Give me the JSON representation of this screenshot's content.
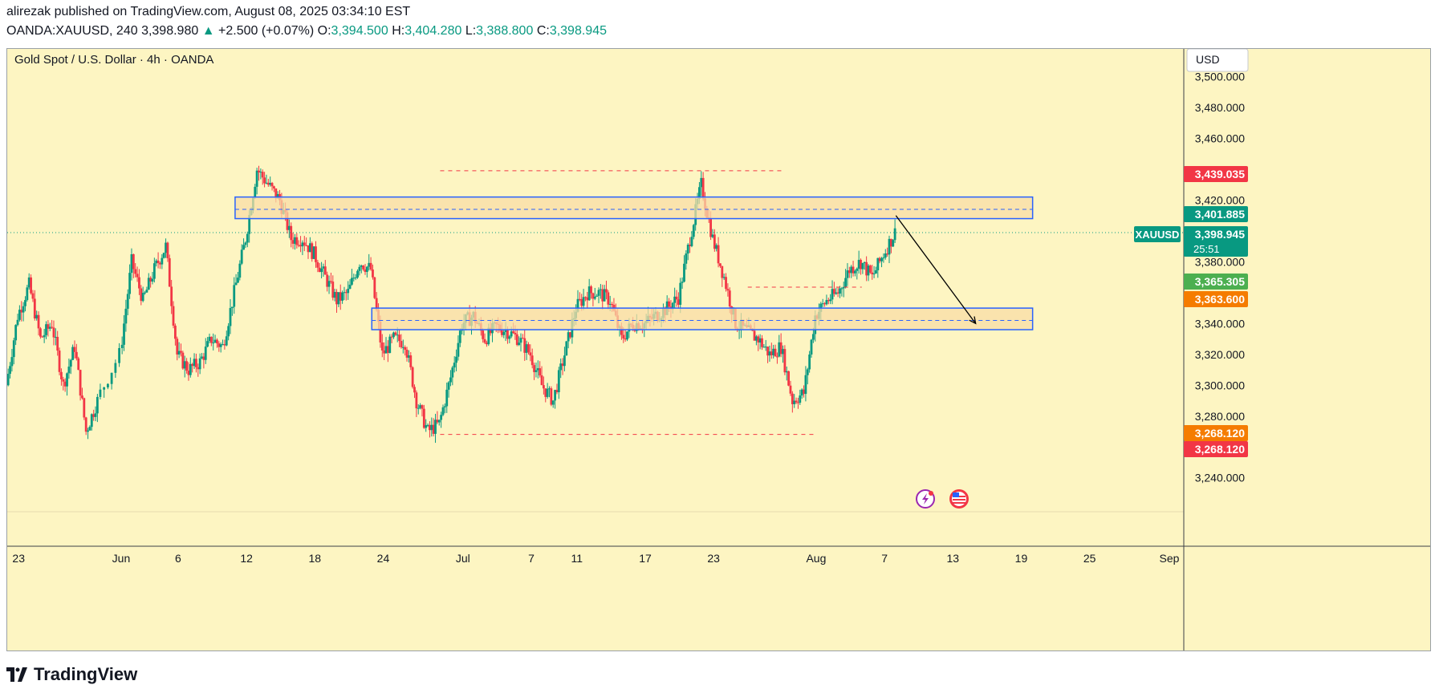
{
  "header": {
    "published": "alirezak published on TradingView.com, August 08, 2025 03:34:10 EST",
    "symbol": "OANDA:XAUUSD, 240",
    "price": "3,398.980",
    "change": "+2.500 (+0.07%)",
    "open_label": "O:",
    "open": "3,394.500",
    "high_label": "H:",
    "high": "3,404.280",
    "low_label": "L:",
    "low": "3,388.800",
    "close_label": "C:",
    "close": "3,398.945"
  },
  "chart_title": "Gold Spot / U.S. Dollar · 4h · OANDA",
  "currency_label": "USD",
  "colors": {
    "up": "#089981",
    "down": "#f23645",
    "background": "#fdf5c2",
    "zone_fill": "#f8dca6",
    "zone_border": "#2962ff",
    "level_line": "#f23645",
    "arrow": "#000000",
    "current_line": "#089981"
  },
  "icons": [
    "trading-view-logo-icon",
    "dividend-flash-icon",
    "us-flag-icon",
    "up-triangle-icon"
  ],
  "chart_data": {
    "type": "candlestick",
    "x_axis": {
      "tick_labels": [
        "23",
        "Jun",
        "6",
        "12",
        "18",
        "24",
        "Jul",
        "7",
        "11",
        "17",
        "23",
        "Aug",
        "7",
        "13",
        "19",
        "25",
        "Sep"
      ],
      "range": [
        "May 22, 2025",
        "Sep 1, 2025"
      ]
    },
    "y_axis": {
      "tick_values": [
        3240,
        3260,
        3280,
        3300,
        3320,
        3340,
        3360,
        3380,
        3400,
        3420,
        3440,
        3460,
        3480,
        3500
      ],
      "tick_labels": [
        "3,240.000",
        "3,280.000",
        "3,300.000",
        "3,320.000",
        "3,340.000",
        "3,380.000",
        "3,420.000",
        "3,460.000",
        "3,480.000",
        "3,500.000"
      ],
      "range": [
        3218,
        3518
      ]
    },
    "price_path": [
      [
        "May 22",
        3300
      ],
      [
        "May 23",
        3345
      ],
      [
        "May 24",
        3365
      ],
      [
        "May 25",
        3330
      ],
      [
        "May 26",
        3340
      ],
      [
        "May 27",
        3300
      ],
      [
        "May 28",
        3325
      ],
      [
        "May 29",
        3270
      ],
      [
        "May 30",
        3290
      ],
      [
        "Jun 1",
        3320
      ],
      [
        "Jun 2",
        3380
      ],
      [
        "Jun 3",
        3355
      ],
      [
        "Jun 4",
        3375
      ],
      [
        "Jun 5",
        3390
      ],
      [
        "Jun 6",
        3320
      ],
      [
        "Jun 7",
        3310
      ],
      [
        "Jun 8",
        3315
      ],
      [
        "Jun 9",
        3330
      ],
      [
        "Jun 10",
        3325
      ],
      [
        "Jun 11",
        3360
      ],
      [
        "Jun 12",
        3395
      ],
      [
        "Jun 13",
        3440
      ],
      [
        "Jun 14",
        3430
      ],
      [
        "Jun 15",
        3420
      ],
      [
        "Jun 16",
        3395
      ],
      [
        "Jun 17",
        3395
      ],
      [
        "Jun 18",
        3385
      ],
      [
        "Jun 19",
        3370
      ],
      [
        "Jun 20",
        3355
      ],
      [
        "Jun 21",
        3360
      ],
      [
        "Jun 22",
        3380
      ],
      [
        "Jun 23",
        3375
      ],
      [
        "Jun 24",
        3320
      ],
      [
        "Jun 25",
        3330
      ],
      [
        "Jun 26",
        3328
      ],
      [
        "Jun 27",
        3290
      ],
      [
        "Jun 28",
        3270
      ],
      [
        "Jun 29",
        3275
      ],
      [
        "Jun 30",
        3305
      ],
      [
        "Jul 1",
        3340
      ],
      [
        "Jul 2",
        3345
      ],
      [
        "Jul 3",
        3330
      ],
      [
        "Jul 4",
        3338
      ],
      [
        "Jul 5",
        3335
      ],
      [
        "Jul 6",
        3330
      ],
      [
        "Jul 7",
        3320
      ],
      [
        "Jul 8",
        3300
      ],
      [
        "Jul 9",
        3290
      ],
      [
        "Jul 10",
        3320
      ],
      [
        "Jul 11",
        3350
      ],
      [
        "Jul 12",
        3360
      ],
      [
        "Jul 13",
        3360
      ],
      [
        "Jul 14",
        3355
      ],
      [
        "Jul 15",
        3330
      ],
      [
        "Jul 16",
        3340
      ],
      [
        "Jul 17",
        3340
      ],
      [
        "Jul 18",
        3345
      ],
      [
        "Jul 19",
        3350
      ],
      [
        "Jul 20",
        3357
      ],
      [
        "Jul 21",
        3395
      ],
      [
        "Jul 22",
        3430
      ],
      [
        "Jul 23",
        3395
      ],
      [
        "Jul 24",
        3370
      ],
      [
        "Jul 25",
        3340
      ],
      [
        "Jul 26",
        3335
      ],
      [
        "Jul 27",
        3330
      ],
      [
        "Jul 28",
        3320
      ],
      [
        "Jul 29",
        3325
      ],
      [
        "Jul 30",
        3290
      ],
      [
        "Jul 31",
        3295
      ],
      [
        "Aug 1",
        3345
      ],
      [
        "Aug 2",
        3355
      ],
      [
        "Aug 3",
        3360
      ],
      [
        "Aug 4",
        3375
      ],
      [
        "Aug 5",
        3380
      ],
      [
        "Aug 6",
        3370
      ],
      [
        "Aug 7",
        3385
      ],
      [
        "Aug 8",
        3398.945
      ]
    ],
    "zones": [
      {
        "top": 3422,
        "bottom": 3408,
        "mid": 3414,
        "from": "Jun 11",
        "to": "Aug 20"
      },
      {
        "top": 3350,
        "bottom": 3336,
        "mid": 3342,
        "from": "Jun 23",
        "to": "Aug 20"
      }
    ],
    "levels": [
      {
        "value": 3439.035,
        "from": "Jun 29",
        "to": "Jul 29"
      },
      {
        "value": 3268.12,
        "from": "Jun 29",
        "to": "Aug 1"
      },
      {
        "value": 3363.6,
        "from": "Jul 26",
        "to": "Aug 5"
      }
    ],
    "arrow": {
      "from": [
        "Aug 8",
        3410
      ],
      "to": [
        "Aug 15",
        3340
      ]
    },
    "price_labels": [
      {
        "value": 3439.035,
        "text": "3,439.035",
        "color": "#f23645"
      },
      {
        "value": 3401.885,
        "text": "3,401.885",
        "color": "#089981"
      },
      {
        "value": 3398.945,
        "text": "3,398.945",
        "sub": "25:51",
        "color": "#089981",
        "symbol": "XAUUSD"
      },
      {
        "value": 3365.305,
        "text": "3,365.305",
        "color": "#4caf50"
      },
      {
        "value": 3363.6,
        "text": "3,363.600",
        "color": "#f57c00"
      },
      {
        "value": 3268.12,
        "text": "3,268.120",
        "color": "#f57c00"
      },
      {
        "value": 3268.12,
        "text": "3,268.120",
        "color": "#f23645"
      }
    ]
  },
  "footer": {
    "brand": "TradingView"
  }
}
